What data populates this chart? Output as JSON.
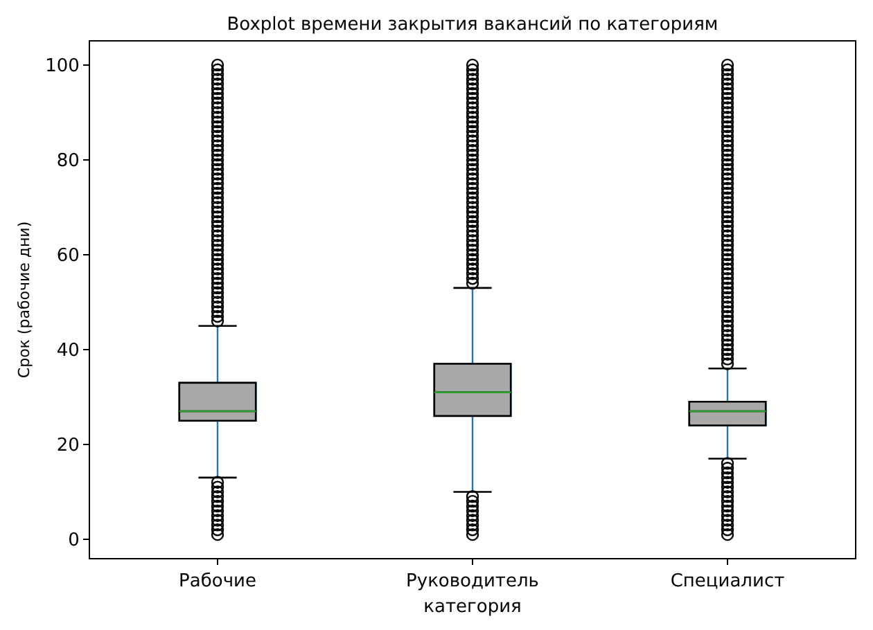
{
  "chart_data": {
    "type": "box",
    "title": "Boxplot времени закрытия вакансий по категориям",
    "xlabel": "категория",
    "ylabel": "Срок (рабочие дни)",
    "categories": [
      "Рабочие",
      "Руководитель",
      "Специалист"
    ],
    "ylim": [
      -3.95,
      104.95
    ],
    "yticks": [
      0,
      20,
      40,
      60,
      80,
      100
    ],
    "marker": "circle",
    "series": [
      {
        "color": "#a9a9a9",
        "boxes": [
          {
            "low": 13,
            "q1": 25,
            "median": 27,
            "q3": 33,
            "high": 45,
            "outliers": [
              1,
              2,
              3,
              4,
              5,
              6,
              7,
              8,
              9,
              10,
              11,
              12,
              46,
              47,
              48,
              49,
              50,
              51,
              52,
              53,
              54,
              55,
              56,
              57,
              58,
              59,
              60,
              61,
              62,
              63,
              64,
              65,
              66,
              67,
              68,
              69,
              70,
              71,
              72,
              73,
              74,
              75,
              76,
              77,
              78,
              79,
              80,
              81,
              82,
              83,
              84,
              85,
              86,
              87,
              88,
              89,
              90,
              91,
              92,
              93,
              94,
              95,
              96,
              97,
              98,
              99,
              100
            ]
          },
          {
            "low": 10,
            "q1": 26,
            "median": 31,
            "q3": 37,
            "high": 53,
            "outliers": [
              1,
              2,
              3,
              4,
              5,
              6,
              7,
              8,
              9,
              54,
              55,
              56,
              57,
              58,
              59,
              60,
              61,
              62,
              63,
              64,
              65,
              66,
              67,
              68,
              69,
              70,
              71,
              72,
              73,
              74,
              75,
              76,
              77,
              78,
              79,
              80,
              81,
              82,
              83,
              84,
              85,
              86,
              87,
              88,
              89,
              90,
              91,
              92,
              93,
              94,
              95,
              96,
              97,
              98,
              99,
              100
            ]
          },
          {
            "low": 17,
            "q1": 24,
            "median": 27,
            "q3": 29,
            "high": 36,
            "outliers": [
              1,
              2,
              3,
              4,
              5,
              6,
              7,
              8,
              9,
              10,
              11,
              12,
              13,
              14,
              15,
              16,
              37,
              38,
              39,
              40,
              41,
              42,
              43,
              44,
              45,
              46,
              47,
              48,
              49,
              50,
              51,
              52,
              53,
              54,
              55,
              56,
              57,
              58,
              59,
              60,
              61,
              62,
              63,
              64,
              65,
              66,
              67,
              68,
              69,
              70,
              71,
              72,
              73,
              74,
              75,
              76,
              77,
              78,
              79,
              80,
              81,
              82,
              83,
              84,
              85,
              86,
              87,
              88,
              89,
              90,
              91,
              92,
              93,
              94,
              95,
              96,
              97,
              98,
              99,
              100
            ]
          }
        ]
      }
    ]
  }
}
